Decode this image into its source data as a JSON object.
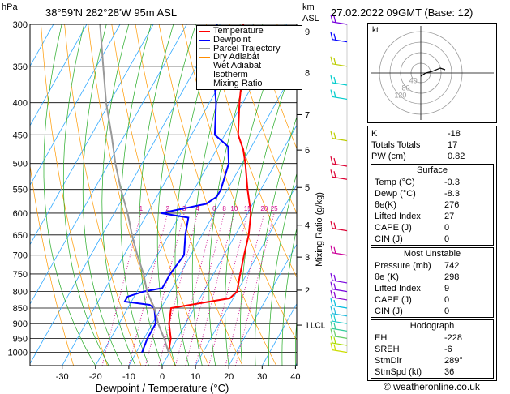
{
  "header": {
    "hpa_label": "hPa",
    "location": "38°59'N  282°28'W  95m  ASL",
    "km_label": "km",
    "asl_label": "ASL",
    "datetime": "27.02.2022  09GMT  (Base: 12)"
  },
  "footer": {
    "copyright": "© weatheronline.co.uk"
  },
  "hodograph": {
    "label": "kt",
    "ring_labels": [
      "120",
      "80",
      "40"
    ]
  },
  "chart_data": {
    "type": "line",
    "title": "",
    "xlabel": "Dewpoint / Temperature (°C)",
    "ylabel": "hPa",
    "right_axis_label": "Mixing Ratio (g/kg)",
    "pressure_ticks": [
      "300",
      "350",
      "400",
      "450",
      "500",
      "550",
      "600",
      "650",
      "700",
      "750",
      "800",
      "850",
      "900",
      "950",
      "1000"
    ],
    "temp_ticks": [
      "-30",
      "-20",
      "-10",
      "0",
      "10",
      "20",
      "30",
      "40"
    ],
    "xlim": [
      -40,
      40
    ],
    "ylim": [
      1050,
      300
    ],
    "km_ticks": [
      {
        "label": "9",
        "p": 308
      },
      {
        "label": "8",
        "p": 358
      },
      {
        "label": "7",
        "p": 418
      },
      {
        "label": "6",
        "p": 476
      },
      {
        "label": "5",
        "p": 546
      },
      {
        "label": "4",
        "p": 627
      },
      {
        "label": "3",
        "p": 705
      },
      {
        "label": "2",
        "p": 796
      },
      {
        "label": "1",
        "p": 905
      }
    ],
    "lcl": {
      "label": "LCL",
      "p": 903
    },
    "mixing_ratio_labels": [
      "1",
      "2",
      "3",
      "4",
      "6",
      "8",
      "10",
      "15",
      "20",
      "25"
    ],
    "legend": {
      "placement": "top-right",
      "entries": [
        {
          "name": "Temperature",
          "color": "#ff0000",
          "style": "solid"
        },
        {
          "name": "Dewpoint",
          "color": "#0000ff",
          "style": "solid"
        },
        {
          "name": "Parcel Trajectory",
          "color": "#999999",
          "style": "solid"
        },
        {
          "name": "Dry Adiabat",
          "color": "#ff8c00",
          "style": "solid"
        },
        {
          "name": "Wet Adiabat",
          "color": "#00aa00",
          "style": "solid"
        },
        {
          "name": "Isotherm",
          "color": "#00aaff",
          "style": "solid"
        },
        {
          "name": "Mixing Ratio",
          "color": "#cc0088",
          "style": "dotted"
        }
      ]
    },
    "series": [
      {
        "name": "Temperature",
        "color": "#ff0000",
        "points": [
          [
            -0.3,
            1000
          ],
          [
            -2,
            950
          ],
          [
            -5,
            900
          ],
          [
            -7,
            850
          ],
          [
            9,
            820
          ],
          [
            10,
            800
          ],
          [
            8,
            750
          ],
          [
            6,
            700
          ],
          [
            4,
            650
          ],
          [
            1,
            600
          ],
          [
            -4,
            550
          ],
          [
            -9,
            500
          ],
          [
            -12,
            475
          ],
          [
            -16,
            450
          ],
          [
            -21,
            400
          ],
          [
            -26,
            350
          ],
          [
            -33,
            300
          ]
        ]
      },
      {
        "name": "Dewpoint",
        "color": "#0000ff",
        "points": [
          [
            -8.3,
            1000
          ],
          [
            -9,
            950
          ],
          [
            -9,
            900
          ],
          [
            -12,
            850
          ],
          [
            -14,
            840
          ],
          [
            -22,
            830
          ],
          [
            -22,
            815
          ],
          [
            -18,
            800
          ],
          [
            -13,
            790
          ],
          [
            -13,
            750
          ],
          [
            -12,
            700
          ],
          [
            -15,
            650
          ],
          [
            -17,
            610
          ],
          [
            -26,
            600
          ],
          [
            -14,
            580
          ],
          [
            -12,
            565
          ],
          [
            -12,
            550
          ],
          [
            -14,
            500
          ],
          [
            -17,
            470
          ],
          [
            -23,
            450
          ],
          [
            -28,
            400
          ],
          [
            -35,
            350
          ],
          [
            -41,
            300
          ]
        ]
      },
      {
        "name": "Parcel Trajectory",
        "color": "#999999",
        "points": [
          [
            -0.3,
            1000
          ],
          [
            -4,
            950
          ],
          [
            -8,
            903
          ],
          [
            -12,
            850
          ],
          [
            -17,
            800
          ],
          [
            -21,
            750
          ],
          [
            -26,
            700
          ],
          [
            -31,
            650
          ],
          [
            -36,
            600
          ],
          [
            -42,
            550
          ],
          [
            -48,
            500
          ],
          [
            -54,
            450
          ],
          [
            -61,
            400
          ],
          [
            -68,
            350
          ],
          [
            -76,
            300
          ]
        ]
      }
    ],
    "winds": [
      {
        "p": 1000,
        "color": "#ccdd00"
      },
      {
        "p": 975,
        "color": "#aadd00"
      },
      {
        "p": 950,
        "color": "#66cc66"
      },
      {
        "p": 925,
        "color": "#33cc99"
      },
      {
        "p": 900,
        "color": "#22cccc"
      },
      {
        "p": 875,
        "color": "#22bbdd"
      },
      {
        "p": 850,
        "color": "#00bbdd"
      },
      {
        "p": 825,
        "color": "#8800cc"
      },
      {
        "p": 800,
        "color": "#7700dd"
      },
      {
        "p": 775,
        "color": "#7700dd"
      },
      {
        "p": 700,
        "color": "#cc0099"
      },
      {
        "p": 640,
        "color": "#dd0033"
      },
      {
        "p": 530,
        "color": "#dd0033"
      },
      {
        "p": 505,
        "color": "#dd0033"
      },
      {
        "p": 460,
        "color": "#bbcc00"
      },
      {
        "p": 395,
        "color": "#00cccc"
      },
      {
        "p": 375,
        "color": "#00cccc"
      },
      {
        "p": 350,
        "color": "#bbcc00"
      },
      {
        "p": 320,
        "color": "#0000ff"
      },
      {
        "p": 300,
        "color": "#7700dd"
      }
    ]
  },
  "indices": {
    "rows": [
      {
        "label": "K",
        "value": "-18"
      },
      {
        "label": "Totals Totals",
        "value": "17"
      },
      {
        "label": "PW (cm)",
        "value": "0.82"
      }
    ],
    "surface": {
      "title": "Surface",
      "rows": [
        {
          "label": "Temp (°C)",
          "value": "-0.3"
        },
        {
          "label": "Dewp (°C)",
          "value": "-8.3"
        },
        {
          "label": "θe(K)",
          "value": "276"
        },
        {
          "label": "Lifted Index",
          "value": "27"
        },
        {
          "label": "CAPE (J)",
          "value": "0"
        },
        {
          "label": "CIN (J)",
          "value": "0"
        }
      ]
    },
    "most_unstable": {
      "title": "Most Unstable",
      "rows": [
        {
          "label": "Pressure (mb)",
          "value": "742"
        },
        {
          "label": "θe (K)",
          "value": "298"
        },
        {
          "label": "Lifted Index",
          "value": "9"
        },
        {
          "label": "CAPE (J)",
          "value": "0"
        },
        {
          "label": "CIN (J)",
          "value": "0"
        }
      ]
    },
    "hodograph_table": {
      "title": "Hodograph",
      "rows": [
        {
          "label": "EH",
          "value": "-228"
        },
        {
          "label": "SREH",
          "value": "-6"
        },
        {
          "label": "StmDir",
          "value": "289°"
        },
        {
          "label": "StmSpd (kt)",
          "value": "36"
        }
      ]
    }
  }
}
